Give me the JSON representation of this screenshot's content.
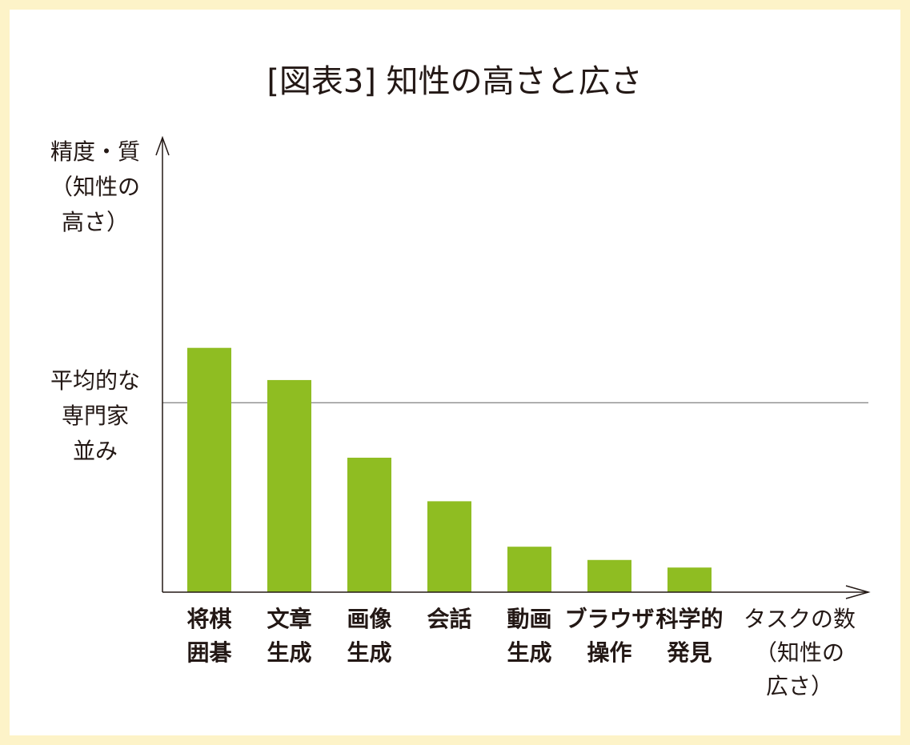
{
  "chart_data": {
    "type": "bar",
    "title": "[図表3] 知性の高さと広さ",
    "ylabel": [
      "精度・質",
      "（知性の",
      "高さ）"
    ],
    "xlabel": [
      "タスクの数",
      "（知性の",
      "広さ）"
    ],
    "categories": [
      [
        "将棋",
        "囲碁"
      ],
      [
        "文章",
        "生成"
      ],
      [
        "画像",
        "生成"
      ],
      [
        "会話"
      ],
      [
        "動画",
        "生成"
      ],
      [
        "ブラウザ",
        "操作"
      ],
      [
        "科学的",
        "発見"
      ]
    ],
    "values": [
      1.29,
      1.12,
      0.71,
      0.48,
      0.24,
      0.17,
      0.13
    ],
    "ylim": [
      0,
      2.4
    ],
    "reference_line": {
      "value": 1.0,
      "label": [
        "平均的な",
        "専門家",
        "並み"
      ]
    },
    "grid": false,
    "legend": "none",
    "colors": {
      "bar": "#8fbd22",
      "axis": "#231815",
      "reference_line": "#8c8c8c",
      "border": "#fdf3c8"
    }
  }
}
